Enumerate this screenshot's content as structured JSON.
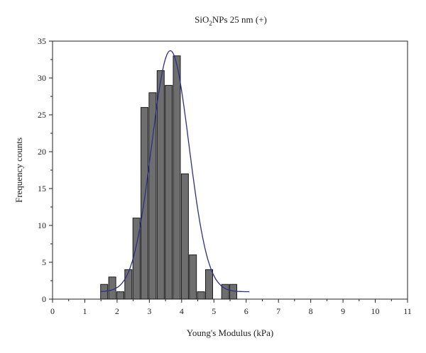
{
  "chart_data": {
    "type": "bar",
    "title_main": "SiO",
    "title_sub": "2",
    "title_rest": "NPs 25 nm (+)",
    "xlabel": "Young's Modulus (kPa)",
    "ylabel": "Frequency counts",
    "xlim": [
      0,
      11
    ],
    "ylim": [
      0,
      35
    ],
    "x_ticks": [
      0,
      1,
      2,
      3,
      4,
      5,
      6,
      7,
      8,
      9,
      10,
      11
    ],
    "y_ticks": [
      0,
      5,
      10,
      15,
      20,
      25,
      30,
      35
    ],
    "bin_width": 0.25,
    "bars": [
      {
        "x": 1.6,
        "value": 2
      },
      {
        "x": 1.85,
        "value": 3
      },
      {
        "x": 2.1,
        "value": 1
      },
      {
        "x": 2.35,
        "value": 4
      },
      {
        "x": 2.6,
        "value": 11
      },
      {
        "x": 2.85,
        "value": 26
      },
      {
        "x": 3.1,
        "value": 28
      },
      {
        "x": 3.35,
        "value": 31
      },
      {
        "x": 3.6,
        "value": 29
      },
      {
        "x": 3.85,
        "value": 33
      },
      {
        "x": 4.1,
        "value": 17
      },
      {
        "x": 4.35,
        "value": 6
      },
      {
        "x": 4.6,
        "value": 1
      },
      {
        "x": 4.85,
        "value": 4
      },
      {
        "x": 5.1,
        "value": 0
      },
      {
        "x": 5.35,
        "value": 2
      },
      {
        "x": 5.6,
        "value": 2
      }
    ],
    "fit": {
      "type": "gaussian",
      "peak_x": 3.65,
      "peak_y": 33.7,
      "sigma": 0.58,
      "offset": 1.0,
      "x_range": [
        1.5,
        6.1
      ]
    },
    "bar_color": "#6e6e6e",
    "bar_edge_color": "#1a1a1a",
    "fit_color": "#2b2f8a",
    "grid": false
  }
}
